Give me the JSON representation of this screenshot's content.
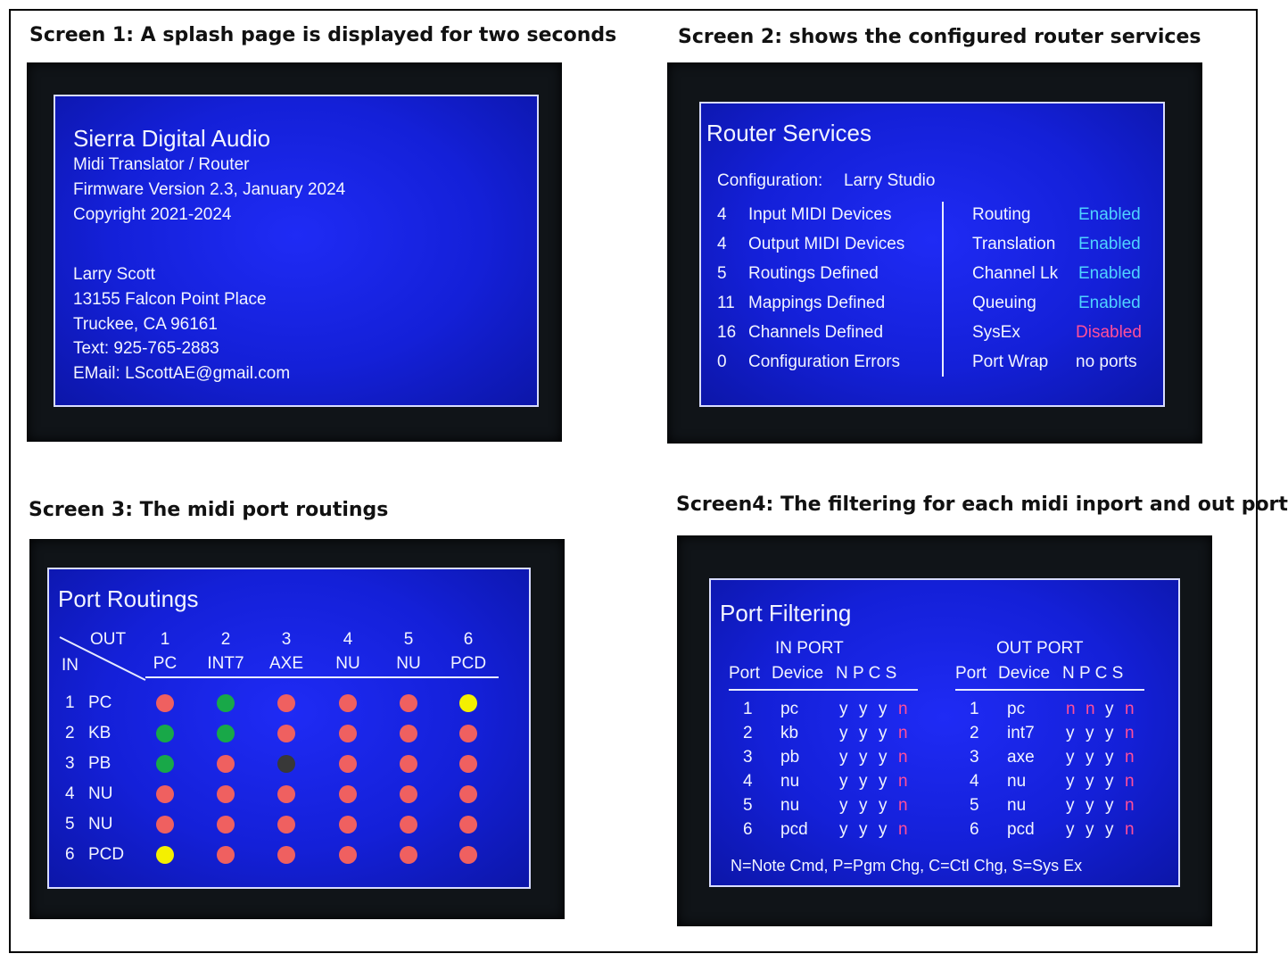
{
  "captions": {
    "s1": "Screen 1: A splash page is displayed for two seconds",
    "s2": "Screen 2: shows the configured router services",
    "s3": "Screen 3: The midi port routings",
    "s4": "Screen4: The filtering for each midi inport and out port"
  },
  "splash": {
    "title": "Sierra Digital Audio",
    "lines": [
      "Midi Translator / Router",
      "Firmware Version 2.3,  January 2024",
      "Copyright 2021-2024"
    ],
    "contact": [
      "Larry Scott",
      "13155 Falcon Point Place",
      "Truckee, CA  96161",
      "Text: 925-765-2883",
      "EMail: LScottAE@gmail.com"
    ]
  },
  "services": {
    "title": "Router Services",
    "config_label": "Configuration:",
    "config_value": "Larry Studio",
    "stats": [
      {
        "num": "4",
        "label": "Input MIDI Devices"
      },
      {
        "num": "4",
        "label": "Output MIDI Devices"
      },
      {
        "num": "5",
        "label": "Routings Defined"
      },
      {
        "num": "11",
        "label": "Mappings Defined"
      },
      {
        "num": "16",
        "label": "Channels Defined"
      },
      {
        "num": "0",
        "label": "Configuration Errors"
      }
    ],
    "features": [
      {
        "name": "Routing",
        "status": "Enabled"
      },
      {
        "name": "Translation",
        "status": "Enabled"
      },
      {
        "name": "Channel Lk",
        "status": "Enabled"
      },
      {
        "name": "Queuing",
        "status": "Enabled"
      },
      {
        "name": "SysEx",
        "status": "Disabled"
      },
      {
        "name": "Port Wrap",
        "status": "no ports"
      }
    ]
  },
  "routings": {
    "title": "Port Routings",
    "out_label": "OUT",
    "in_label": "IN",
    "out_ports": [
      {
        "num": "1",
        "name": "PC"
      },
      {
        "num": "2",
        "name": "INT7"
      },
      {
        "num": "3",
        "name": "AXE"
      },
      {
        "num": "4",
        "name": "NU"
      },
      {
        "num": "5",
        "name": "NU"
      },
      {
        "num": "6",
        "name": "PCD"
      }
    ],
    "in_ports": [
      {
        "num": "1",
        "name": "PC"
      },
      {
        "num": "2",
        "name": "KB"
      },
      {
        "num": "3",
        "name": "PB"
      },
      {
        "num": "4",
        "name": "NU"
      },
      {
        "num": "5",
        "name": "NU"
      },
      {
        "num": "6",
        "name": "PCD"
      }
    ],
    "matrix": [
      [
        "red",
        "green",
        "red",
        "red",
        "red",
        "yellow"
      ],
      [
        "green",
        "green",
        "red",
        "red",
        "red",
        "red"
      ],
      [
        "green",
        "red",
        "dark",
        "red",
        "red",
        "red"
      ],
      [
        "red",
        "red",
        "red",
        "red",
        "red",
        "red"
      ],
      [
        "red",
        "red",
        "red",
        "red",
        "red",
        "red"
      ],
      [
        "yellow",
        "red",
        "red",
        "red",
        "red",
        "red"
      ]
    ],
    "colors": {
      "red": "#ef6060",
      "green": "#18a848",
      "yellow": "#f4f000",
      "dark": "#383838"
    }
  },
  "filtering": {
    "title": "Port Filtering",
    "in_header": "IN PORT",
    "out_header": "OUT PORT",
    "col_port": "Port",
    "col_device": "Device",
    "col_flags": "N P C S",
    "in_rows": [
      {
        "port": "1",
        "device": "pc",
        "flags": [
          "y",
          "y",
          "y",
          "n"
        ]
      },
      {
        "port": "2",
        "device": "kb",
        "flags": [
          "y",
          "y",
          "y",
          "n"
        ]
      },
      {
        "port": "3",
        "device": "pb",
        "flags": [
          "y",
          "y",
          "y",
          "n"
        ]
      },
      {
        "port": "4",
        "device": "nu",
        "flags": [
          "y",
          "y",
          "y",
          "n"
        ]
      },
      {
        "port": "5",
        "device": "nu",
        "flags": [
          "y",
          "y",
          "y",
          "n"
        ]
      },
      {
        "port": "6",
        "device": "pcd",
        "flags": [
          "y",
          "y",
          "y",
          "n"
        ]
      }
    ],
    "out_rows": [
      {
        "port": "1",
        "device": "pc",
        "flags": [
          "n",
          "n",
          "y",
          "n"
        ]
      },
      {
        "port": "2",
        "device": "int7",
        "flags": [
          "y",
          "y",
          "y",
          "n"
        ]
      },
      {
        "port": "3",
        "device": "axe",
        "flags": [
          "y",
          "y",
          "y",
          "n"
        ]
      },
      {
        "port": "4",
        "device": "nu",
        "flags": [
          "y",
          "y",
          "y",
          "n"
        ]
      },
      {
        "port": "5",
        "device": "nu",
        "flags": [
          "y",
          "y",
          "y",
          "n"
        ]
      },
      {
        "port": "6",
        "device": "pcd",
        "flags": [
          "y",
          "y",
          "y",
          "n"
        ]
      }
    ],
    "legend": "N=Note Cmd,   P=Pgm Chg,   C=Ctl Chg,   S=Sys Ex"
  }
}
